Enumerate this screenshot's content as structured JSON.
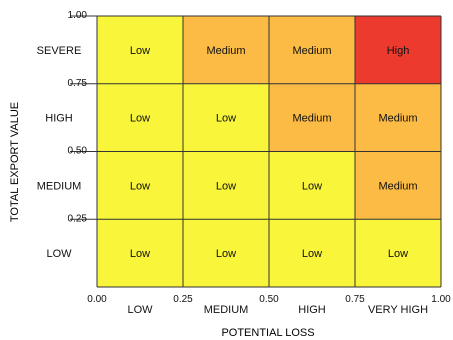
{
  "chart_data": {
    "type": "heatmap",
    "title": "",
    "xlabel": "POTENTIAL LOSS",
    "ylabel": "TOTAL EXPORT VALUE",
    "x_ticks": [
      "0.00",
      "0.25",
      "0.50",
      "0.75",
      "1.00"
    ],
    "y_ticks": [
      "0.25",
      "0.50",
      "0.75",
      "1.00"
    ],
    "x_categories": [
      "LOW",
      "MEDIUM",
      "HIGH",
      "VERY HIGH"
    ],
    "y_categories": [
      "SEVERE",
      "HIGH",
      "MEDIUM",
      "LOW"
    ],
    "xlim": [
      0,
      1
    ],
    "ylim": [
      0,
      1
    ],
    "cells": [
      [
        "Low",
        "Medium",
        "Medium",
        "High"
      ],
      [
        "Low",
        "Low",
        "Medium",
        "Medium"
      ],
      [
        "Low",
        "Low",
        "Low",
        "Medium"
      ],
      [
        "Low",
        "Low",
        "Low",
        "Low"
      ]
    ],
    "colors": {
      "Low": "#f8f53a",
      "Medium": "#fbbb45",
      "High": "#ec3a2e",
      "grid": "#333333",
      "text": "#111111"
    }
  }
}
